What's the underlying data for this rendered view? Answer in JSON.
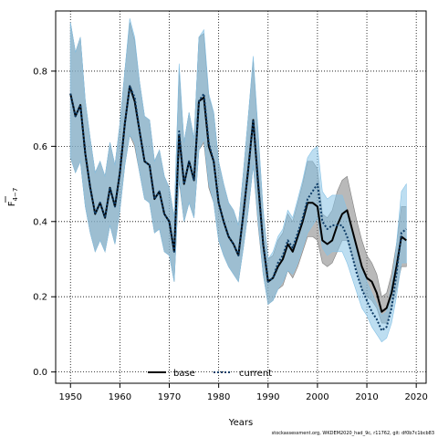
{
  "chart_data": {
    "type": "line",
    "title": "",
    "xlabel": "Years",
    "ylabel_main": "F",
    "ylabel_sub": "4−7",
    "xlim": [
      1947,
      2022
    ],
    "ylim": [
      -0.03,
      0.96
    ],
    "xticks": [
      1950,
      1960,
      1970,
      1980,
      1990,
      2000,
      2010,
      2020
    ],
    "yticks": [
      0.0,
      0.2,
      0.4,
      0.6,
      0.8
    ],
    "ytick_labels": [
      "0.0",
      "0.2",
      "0.4",
      "0.6",
      "0.8"
    ],
    "grid": true,
    "legend_position": "bottom-center",
    "series": [
      {
        "name": "base",
        "color": "#000000",
        "band_color": "#7f7f7f",
        "style": "solid",
        "x": [
          1950,
          1951,
          1952,
          1953,
          1954,
          1955,
          1956,
          1957,
          1958,
          1959,
          1960,
          1961,
          1962,
          1963,
          1964,
          1965,
          1966,
          1967,
          1968,
          1969,
          1970,
          1971,
          1972,
          1973,
          1974,
          1975,
          1976,
          1977,
          1978,
          1979,
          1980,
          1981,
          1982,
          1983,
          1984,
          1985,
          1986,
          1987,
          1988,
          1989,
          1990,
          1991,
          1992,
          1993,
          1994,
          1995,
          1996,
          1997,
          1998,
          1999,
          2000,
          2001,
          2002,
          2003,
          2004,
          2005,
          2006,
          2007,
          2008,
          2009,
          2010,
          2011,
          2012,
          2013,
          2014,
          2015,
          2016,
          2017,
          2018
        ],
        "y": [
          0.74,
          0.68,
          0.71,
          0.58,
          0.49,
          0.42,
          0.45,
          0.41,
          0.49,
          0.44,
          0.53,
          0.66,
          0.76,
          0.72,
          0.64,
          0.56,
          0.55,
          0.46,
          0.48,
          0.42,
          0.4,
          0.32,
          0.63,
          0.5,
          0.56,
          0.51,
          0.72,
          0.73,
          0.6,
          0.56,
          0.45,
          0.4,
          0.36,
          0.34,
          0.31,
          0.42,
          0.54,
          0.67,
          0.5,
          0.34,
          0.24,
          0.25,
          0.28,
          0.3,
          0.34,
          0.32,
          0.36,
          0.4,
          0.45,
          0.45,
          0.44,
          0.35,
          0.34,
          0.35,
          0.39,
          0.42,
          0.43,
          0.38,
          0.33,
          0.28,
          0.25,
          0.24,
          0.21,
          0.16,
          0.17,
          0.21,
          0.28,
          0.36,
          0.35
        ],
        "lower": [
          0.57,
          0.53,
          0.56,
          0.44,
          0.37,
          0.32,
          0.35,
          0.32,
          0.39,
          0.34,
          0.43,
          0.55,
          0.63,
          0.6,
          0.53,
          0.46,
          0.45,
          0.37,
          0.38,
          0.32,
          0.31,
          0.24,
          0.51,
          0.4,
          0.45,
          0.41,
          0.59,
          0.61,
          0.49,
          0.45,
          0.35,
          0.31,
          0.28,
          0.26,
          0.24,
          0.33,
          0.43,
          0.55,
          0.39,
          0.26,
          0.18,
          0.19,
          0.22,
          0.23,
          0.27,
          0.25,
          0.28,
          0.32,
          0.36,
          0.36,
          0.35,
          0.29,
          0.28,
          0.29,
          0.32,
          0.35,
          0.35,
          0.31,
          0.27,
          0.22,
          0.2,
          0.19,
          0.17,
          0.13,
          0.13,
          0.17,
          0.22,
          0.28,
          0.28
        ],
        "upper": [
          0.93,
          0.85,
          0.89,
          0.72,
          0.62,
          0.53,
          0.56,
          0.52,
          0.61,
          0.55,
          0.66,
          0.8,
          0.93,
          0.88,
          0.77,
          0.68,
          0.67,
          0.56,
          0.59,
          0.52,
          0.49,
          0.41,
          0.8,
          0.61,
          0.69,
          0.62,
          0.89,
          0.9,
          0.73,
          0.69,
          0.56,
          0.5,
          0.45,
          0.43,
          0.39,
          0.53,
          0.68,
          0.83,
          0.63,
          0.43,
          0.3,
          0.31,
          0.35,
          0.37,
          0.42,
          0.4,
          0.45,
          0.5,
          0.56,
          0.56,
          0.54,
          0.42,
          0.41,
          0.43,
          0.48,
          0.51,
          0.52,
          0.46,
          0.4,
          0.35,
          0.31,
          0.29,
          0.26,
          0.2,
          0.21,
          0.26,
          0.34,
          0.44,
          0.44
        ]
      },
      {
        "name": "current",
        "color": "#0d3b66",
        "band_color": "#87c2e5",
        "style": "dotted",
        "x": [
          1950,
          1951,
          1952,
          1953,
          1954,
          1955,
          1956,
          1957,
          1958,
          1959,
          1960,
          1961,
          1962,
          1963,
          1964,
          1965,
          1966,
          1967,
          1968,
          1969,
          1970,
          1971,
          1972,
          1973,
          1974,
          1975,
          1976,
          1977,
          1978,
          1979,
          1980,
          1981,
          1982,
          1983,
          1984,
          1985,
          1986,
          1987,
          1988,
          1989,
          1990,
          1991,
          1992,
          1993,
          1994,
          1995,
          1996,
          1997,
          1998,
          1999,
          2000,
          2001,
          2002,
          2003,
          2004,
          2005,
          2006,
          2007,
          2008,
          2009,
          2010,
          2011,
          2012,
          2013,
          2014,
          2015,
          2016,
          2017,
          2018
        ],
        "y": [
          0.74,
          0.68,
          0.71,
          0.58,
          0.49,
          0.42,
          0.45,
          0.41,
          0.49,
          0.44,
          0.53,
          0.66,
          0.76,
          0.73,
          0.64,
          0.56,
          0.55,
          0.46,
          0.48,
          0.42,
          0.4,
          0.32,
          0.64,
          0.5,
          0.56,
          0.51,
          0.72,
          0.74,
          0.61,
          0.56,
          0.45,
          0.4,
          0.36,
          0.34,
          0.31,
          0.42,
          0.54,
          0.67,
          0.51,
          0.34,
          0.24,
          0.25,
          0.29,
          0.31,
          0.35,
          0.33,
          0.37,
          0.41,
          0.46,
          0.48,
          0.5,
          0.4,
          0.38,
          0.39,
          0.39,
          0.39,
          0.36,
          0.31,
          0.26,
          0.22,
          0.19,
          0.16,
          0.14,
          0.11,
          0.12,
          0.17,
          0.26,
          0.37,
          0.38
        ],
        "lower": [
          0.57,
          0.53,
          0.56,
          0.44,
          0.37,
          0.32,
          0.35,
          0.32,
          0.39,
          0.34,
          0.43,
          0.55,
          0.63,
          0.61,
          0.53,
          0.46,
          0.45,
          0.37,
          0.38,
          0.32,
          0.31,
          0.24,
          0.52,
          0.4,
          0.45,
          0.41,
          0.59,
          0.62,
          0.5,
          0.45,
          0.35,
          0.31,
          0.28,
          0.26,
          0.24,
          0.33,
          0.43,
          0.55,
          0.4,
          0.26,
          0.18,
          0.19,
          0.22,
          0.24,
          0.27,
          0.26,
          0.29,
          0.33,
          0.37,
          0.39,
          0.41,
          0.33,
          0.31,
          0.32,
          0.32,
          0.32,
          0.29,
          0.25,
          0.21,
          0.17,
          0.15,
          0.12,
          0.1,
          0.08,
          0.09,
          0.13,
          0.2,
          0.29,
          0.29
        ],
        "upper": [
          0.93,
          0.85,
          0.89,
          0.72,
          0.62,
          0.53,
          0.56,
          0.52,
          0.61,
          0.55,
          0.66,
          0.8,
          0.94,
          0.89,
          0.77,
          0.68,
          0.67,
          0.56,
          0.59,
          0.52,
          0.49,
          0.41,
          0.82,
          0.61,
          0.69,
          0.62,
          0.89,
          0.91,
          0.74,
          0.69,
          0.56,
          0.5,
          0.45,
          0.43,
          0.39,
          0.53,
          0.68,
          0.84,
          0.64,
          0.43,
          0.3,
          0.32,
          0.36,
          0.38,
          0.43,
          0.41,
          0.46,
          0.51,
          0.57,
          0.59,
          0.6,
          0.48,
          0.46,
          0.47,
          0.47,
          0.47,
          0.43,
          0.38,
          0.32,
          0.28,
          0.24,
          0.21,
          0.18,
          0.15,
          0.16,
          0.23,
          0.34,
          0.48,
          0.5
        ]
      }
    ]
  },
  "legend": {
    "items": [
      {
        "label": "base",
        "color": "#000000",
        "style": "solid"
      },
      {
        "label": "current",
        "color": "#0d3b66",
        "style": "dotted"
      }
    ]
  },
  "footer": {
    "note": "stockassessment.org, WKDEM2020_had_9c, r11762, git: df0b7c1bcb83"
  }
}
